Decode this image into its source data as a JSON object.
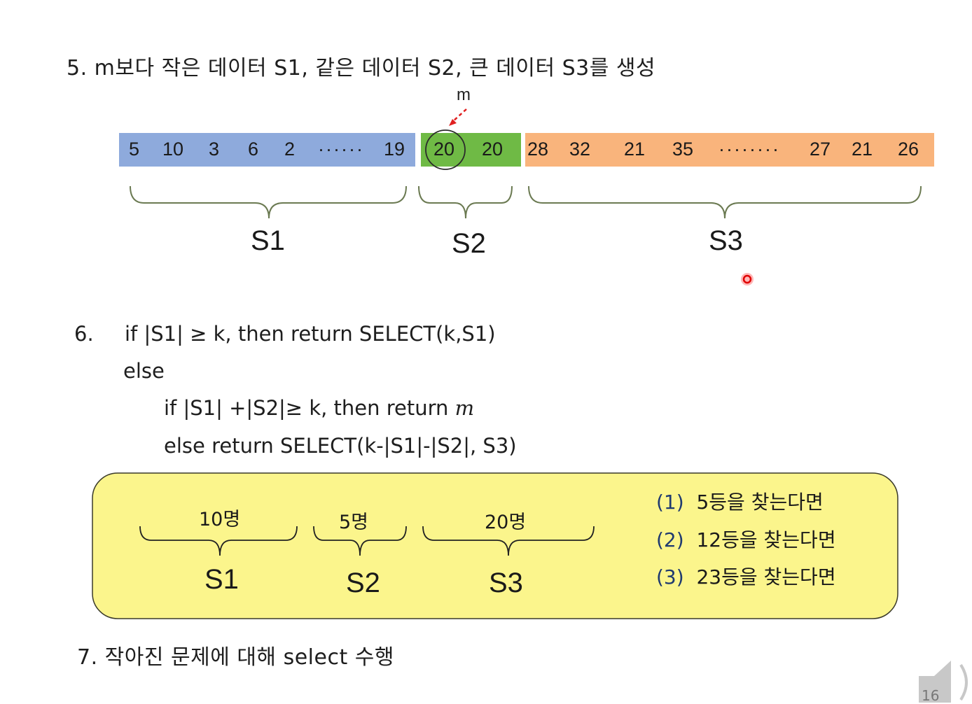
{
  "step5": {
    "title": "5. m보다 작은 데이터 S1, 같은 데이터 S2, 큰 데이터 S3를 생성",
    "pivot_label": "m",
    "s1_numbers": [
      "5",
      "10",
      "3",
      "6",
      "2",
      "19"
    ],
    "s1_dots": "······",
    "s2_numbers": [
      "20",
      "20"
    ],
    "s3_numbers_left": [
      "28",
      "32",
      "21",
      "35"
    ],
    "s3_dots": "········",
    "s3_numbers_right": [
      "27",
      "21",
      "26"
    ],
    "labels": [
      "S1",
      "S2",
      "S3"
    ],
    "colors": {
      "s1": "#8eaadc",
      "s2": "#6fba45",
      "s3": "#f9b47c",
      "pivot_arrow": "#e02020"
    }
  },
  "step6": {
    "number": "6.",
    "line1": "if |S1| ≥ k, then return SELECT(k,S1)",
    "line2": "else",
    "line3_prefix": "if |S1| +|S2|≥ k, then return ",
    "line3_var": "m",
    "line4": "else return SELECT(k-|S1|-|S2|, S3)"
  },
  "example": {
    "counts": [
      "10명",
      "5명",
      "20명"
    ],
    "labels": [
      "S1",
      "S2",
      "S3"
    ],
    "questions": [
      {
        "num": "(1)",
        "text": "5등을 찾는다면"
      },
      {
        "num": "(2)",
        "text": "12등을 찾는다면"
      },
      {
        "num": "(3)",
        "text": "23등을 찾는다면"
      }
    ],
    "box_color": "#fbf58c"
  },
  "step7": {
    "title": "7. 작아진 문제에 대해 select 수행"
  },
  "page_number": "16"
}
